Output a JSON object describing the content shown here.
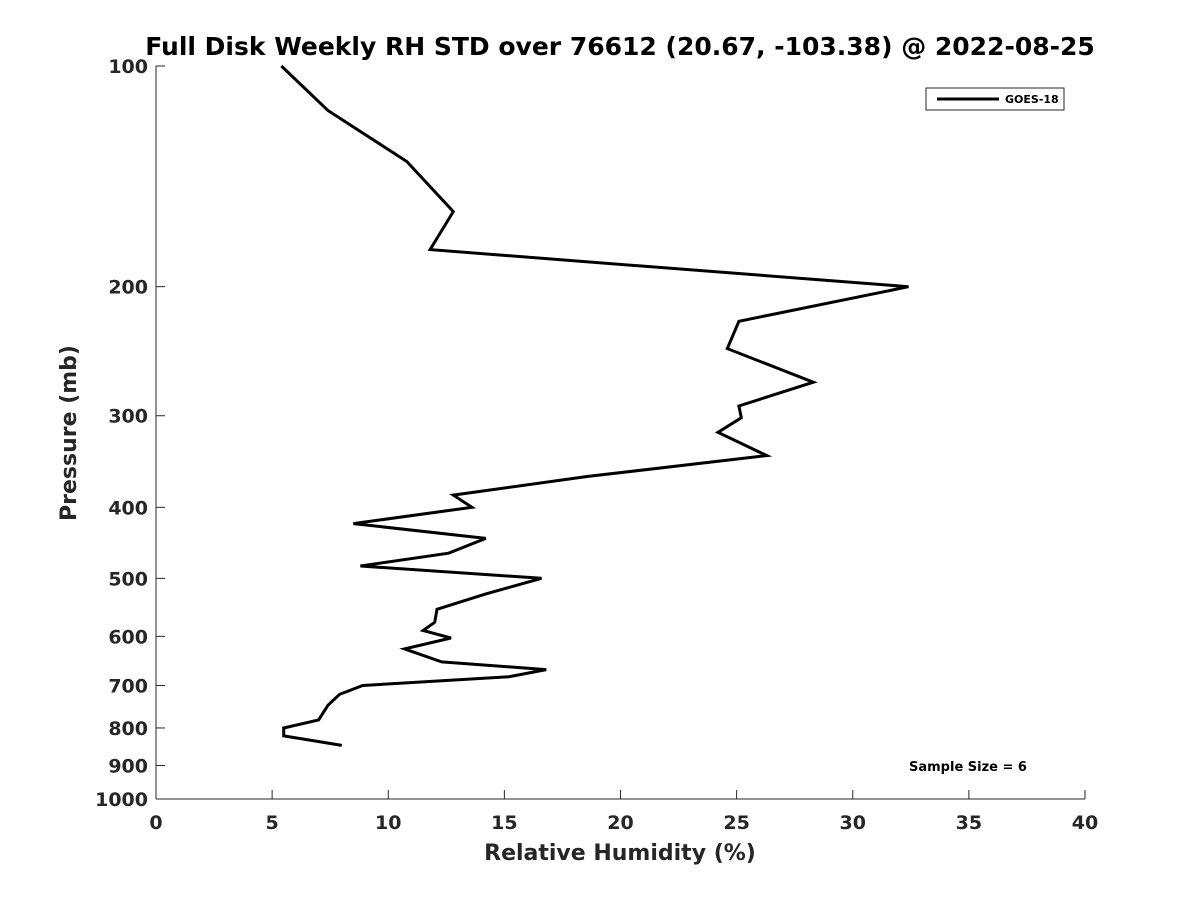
{
  "chart_data": {
    "type": "line",
    "title": "Full Disk Weekly RH STD over 76612 (20.67, -103.38) @ 2022-08-25",
    "xlabel": "Relative Humidity (%)",
    "ylabel": "Pressure (mb)",
    "xlim": [
      0,
      40
    ],
    "ylim": [
      100,
      1000
    ],
    "y_scale": "log",
    "y_reversed": true,
    "grid": false,
    "x_ticks": [
      0,
      5,
      10,
      15,
      20,
      25,
      30,
      35,
      40
    ],
    "y_ticks": [
      100,
      200,
      300,
      400,
      500,
      600,
      700,
      800,
      900,
      1000
    ],
    "legend_position": "top-right",
    "annotation": "Sample Size = 6",
    "series": [
      {
        "name": "GOES-18",
        "color": "#000000",
        "points": [
          {
            "rh": 5.4,
            "p": 100
          },
          {
            "rh": 7.4,
            "p": 115
          },
          {
            "rh": 10.8,
            "p": 135
          },
          {
            "rh": 12.8,
            "p": 158
          },
          {
            "rh": 11.8,
            "p": 178
          },
          {
            "rh": 32.4,
            "p": 200
          },
          {
            "rh": 25.1,
            "p": 223
          },
          {
            "rh": 24.6,
            "p": 243
          },
          {
            "rh": 28.3,
            "p": 270
          },
          {
            "rh": 25.1,
            "p": 291
          },
          {
            "rh": 25.2,
            "p": 302
          },
          {
            "rh": 24.2,
            "p": 316
          },
          {
            "rh": 26.3,
            "p": 340
          },
          {
            "rh": 18.6,
            "p": 363
          },
          {
            "rh": 12.8,
            "p": 385
          },
          {
            "rh": 13.6,
            "p": 400
          },
          {
            "rh": 8.5,
            "p": 421
          },
          {
            "rh": 14.2,
            "p": 441
          },
          {
            "rh": 12.6,
            "p": 462
          },
          {
            "rh": 8.8,
            "p": 481
          },
          {
            "rh": 16.6,
            "p": 500
          },
          {
            "rh": 14.2,
            "p": 525
          },
          {
            "rh": 12.1,
            "p": 551
          },
          {
            "rh": 12.0,
            "p": 574
          },
          {
            "rh": 11.5,
            "p": 589
          },
          {
            "rh": 12.7,
            "p": 603
          },
          {
            "rh": 10.7,
            "p": 624
          },
          {
            "rh": 12.3,
            "p": 650
          },
          {
            "rh": 16.8,
            "p": 666
          },
          {
            "rh": 15.2,
            "p": 681
          },
          {
            "rh": 8.9,
            "p": 700
          },
          {
            "rh": 7.9,
            "p": 720
          },
          {
            "rh": 7.4,
            "p": 745
          },
          {
            "rh": 7.0,
            "p": 780
          },
          {
            "rh": 5.5,
            "p": 800
          },
          {
            "rh": 5.5,
            "p": 820
          },
          {
            "rh": 8.0,
            "p": 845
          }
        ]
      }
    ]
  }
}
